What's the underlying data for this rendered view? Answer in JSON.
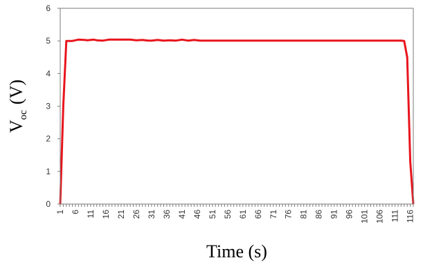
{
  "chart_data": {
    "type": "line",
    "xlabel": "Time (s)",
    "ylabel_main": "V",
    "ylabel_sub": "oc",
    "ylabel_unit": "(V)",
    "ylim": [
      0,
      6
    ],
    "yticks": [
      0,
      1,
      2,
      3,
      4,
      5,
      6
    ],
    "xlim": [
      1,
      117
    ],
    "xtick_labels": [
      "1",
      "6",
      "11",
      "16",
      "21",
      "26",
      "31",
      "36",
      "41",
      "46",
      "51",
      "56",
      "61",
      "66",
      "71",
      "76",
      "81",
      "86",
      "91",
      "96",
      "101",
      "106",
      "111",
      "116"
    ],
    "grid": false,
    "legend": "none",
    "line_color": "#e8141c",
    "series": [
      {
        "x": [
          1,
          2,
          3,
          5,
          6,
          7,
          9,
          10,
          12,
          13,
          15,
          17,
          20,
          24,
          26,
          28,
          30,
          31,
          33,
          35,
          37,
          39,
          41,
          43,
          45,
          47,
          60,
          80,
          100,
          110,
          113,
          114,
          115,
          116,
          117
        ],
        "values": [
          0,
          3,
          5.0,
          5.0,
          5.02,
          5.04,
          5.03,
          5.02,
          5.04,
          5.02,
          5.01,
          5.04,
          5.04,
          5.04,
          5.02,
          5.03,
          5.01,
          5.01,
          5.03,
          5.01,
          5.02,
          5.01,
          5.04,
          5.01,
          5.03,
          5.01,
          5.01,
          5.01,
          5.01,
          5.01,
          5.01,
          5.0,
          4.5,
          1.3,
          0
        ]
      }
    ]
  }
}
